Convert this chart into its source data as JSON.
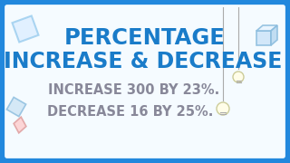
{
  "bg_color": "#ddeeff",
  "inner_bg_color": "#f0f8ff",
  "border_color": "#2288dd",
  "title_line1": "PERCENTAGE",
  "title_line2": "INCREASE & DECREASE",
  "subtitle_line1": "INCREASE 300 BY 23%.",
  "subtitle_line2": "DECREASE 16 BY 25%.",
  "title_color": "#1a7cc9",
  "subtitle_color": "#888899",
  "border_width": 5,
  "title_fontsize": 17.5,
  "subtitle_fontsize": 10.5,
  "figw": 3.2,
  "figh": 1.8
}
